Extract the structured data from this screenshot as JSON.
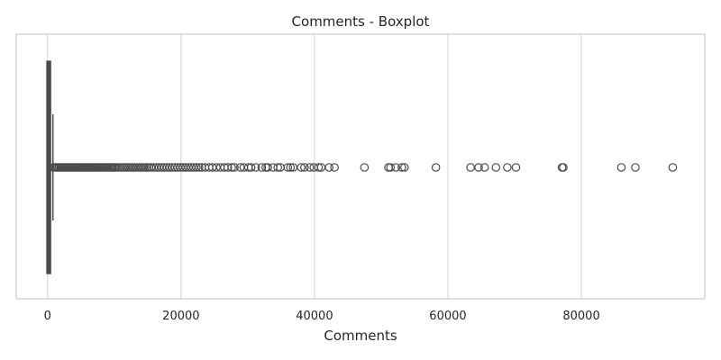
{
  "chart_data": {
    "type": "boxplot",
    "orientation": "horizontal",
    "title": "Comments - Boxplot",
    "xlabel": "Comments",
    "ylabel": "",
    "xlim": [
      -4700,
      98500
    ],
    "xticks": [
      0,
      20000,
      40000,
      60000,
      80000
    ],
    "xtick_labels": [
      "0",
      "20000",
      "40000",
      "60000",
      "80000"
    ],
    "grid": true,
    "box": {
      "min": 0,
      "q1": 20,
      "median": 90,
      "q3": 330,
      "whisker_low": 0,
      "whisker_high": 800
    },
    "outliers": [
      900,
      1100,
      1300,
      1500,
      1700,
      1900,
      2100,
      2300,
      2500,
      2700,
      2900,
      3100,
      3300,
      3500,
      3700,
      3900,
      4100,
      4300,
      4500,
      4700,
      4900,
      5100,
      5300,
      5500,
      5700,
      5900,
      6100,
      6300,
      6500,
      6700,
      6900,
      7100,
      7300,
      7500,
      7700,
      7900,
      8100,
      8300,
      8500,
      8700,
      8900,
      9100,
      9300,
      9500,
      9700,
      9900,
      10100,
      10400,
      10700,
      11000,
      11300,
      11600,
      11900,
      12200,
      12500,
      12800,
      13100,
      13400,
      13700,
      14000,
      14300,
      14600,
      14900,
      15200,
      15500,
      15900,
      16300,
      16700,
      17100,
      17500,
      17900,
      18300,
      18700,
      19100,
      19500,
      19900,
      20300,
      20700,
      21100,
      21500,
      21900,
      22300,
      22700,
      23100,
      23600,
      24200,
      24700,
      25300,
      25900,
      26500,
      27000,
      27600,
      28000,
      28900,
      29400,
      30100,
      30500,
      31200,
      32100,
      32700,
      33000,
      33800,
      34500,
      34900,
      36000,
      36400,
      36800,
      38000,
      38500,
      39300,
      39900,
      40600,
      41000,
      42200,
      43000,
      47500,
      51100,
      51400,
      52200,
      53100,
      53500,
      58200,
      63400,
      64600,
      65500,
      67200,
      68900,
      70200,
      77100,
      77300,
      86000,
      88100,
      93700
    ],
    "color": "#4c4c4c",
    "grid_color": "#d9d9d9"
  }
}
